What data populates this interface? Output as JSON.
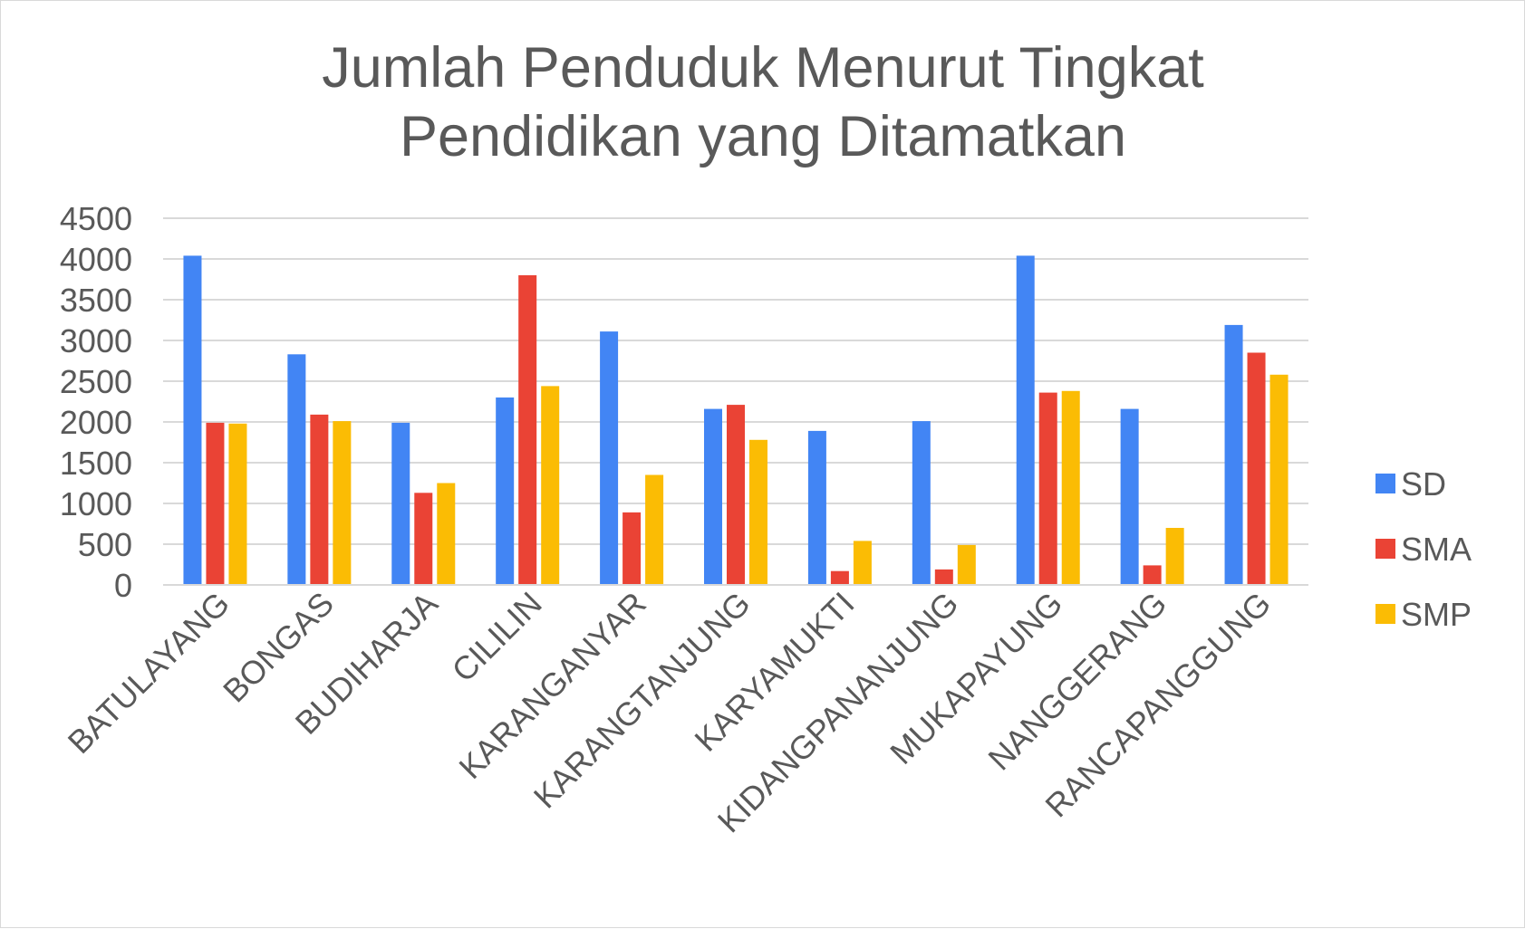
{
  "chart_data": {
    "type": "bar",
    "title_lines": [
      "Jumlah Penduduk Menurut Tingkat",
      "Pendidikan yang Ditamatkan"
    ],
    "xlabel": "",
    "ylabel": "",
    "categories": [
      "BATULAYANG",
      "BONGAS",
      "BUDIHARJA",
      "CILILIN",
      "KARANGANYAR",
      "KARANGTANJUNG",
      "KARYAMUKTI",
      "KIDANGPANANJUNG",
      "MUKAPAYUNG",
      "NANGGERANG",
      "RANCAPANGGUNG"
    ],
    "yticks": [
      "0",
      "500",
      "1000",
      "1500",
      "2000",
      "2500",
      "3000",
      "3500",
      "4000",
      "4500"
    ],
    "ylim": [
      0,
      4500
    ],
    "grid": true,
    "legend_position": "right",
    "series": [
      {
        "name": "SD",
        "color": "#4285f4",
        "values": [
          4040,
          2830,
          1990,
          2300,
          3110,
          2160,
          1890,
          2010,
          4040,
          2160,
          3190
        ]
      },
      {
        "name": "SMA",
        "color": "#ea4335",
        "values": [
          1990,
          2090,
          1130,
          3800,
          890,
          2210,
          170,
          190,
          2360,
          240,
          2850
        ]
      },
      {
        "name": "SMP",
        "color": "#fbbc04",
        "values": [
          1980,
          2010,
          1250,
          2440,
          1350,
          1780,
          540,
          490,
          2380,
          700,
          2580
        ]
      }
    ]
  }
}
